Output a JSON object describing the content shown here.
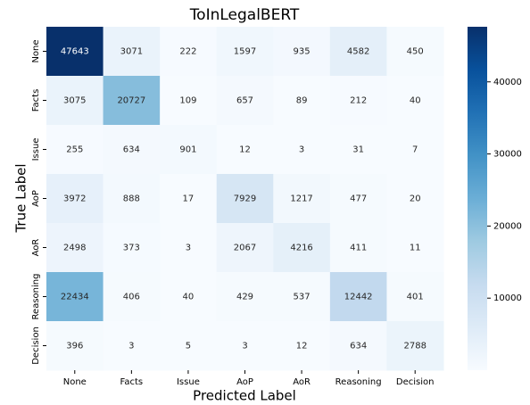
{
  "chart_data": {
    "type": "heatmap",
    "title": "ToInLegalBERT",
    "xlabel": "Predicted Label",
    "ylabel": "True Label",
    "x_categories": [
      "None",
      "Facts",
      "Issue",
      "AoP",
      "AoR",
      "Reasoning",
      "Decision"
    ],
    "y_categories": [
      "None",
      "Facts",
      "Issue",
      "AoP",
      "AoR",
      "Reasoning",
      "Decision"
    ],
    "values": [
      [
        47643,
        3071,
        222,
        1597,
        935,
        4582,
        450
      ],
      [
        3075,
        20727,
        109,
        657,
        89,
        212,
        40
      ],
      [
        255,
        634,
        901,
        12,
        3,
        31,
        7
      ],
      [
        3972,
        888,
        17,
        7929,
        1217,
        477,
        20
      ],
      [
        2498,
        373,
        3,
        2067,
        4216,
        411,
        11
      ],
      [
        22434,
        406,
        40,
        429,
        537,
        12442,
        401
      ],
      [
        396,
        3,
        5,
        3,
        12,
        634,
        2788
      ]
    ],
    "colormap": "Blues",
    "clim": [
      3,
      47643
    ],
    "cticks": [
      10000,
      20000,
      30000,
      40000
    ]
  }
}
